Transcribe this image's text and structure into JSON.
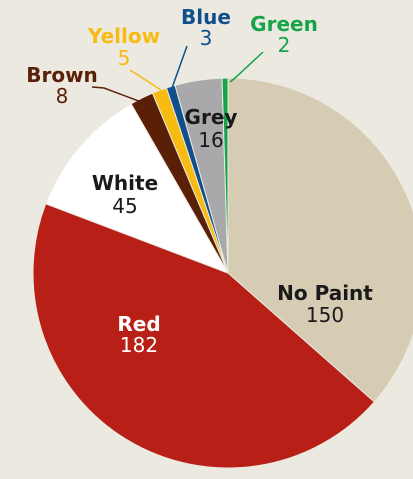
{
  "chart_data": {
    "type": "pie",
    "title": "",
    "slices": [
      {
        "label": "No Paint",
        "value": 150,
        "color": "#d6ccb4",
        "label_color": "#1a1a1a"
      },
      {
        "label": "Red",
        "value": 182,
        "color": "#b71f17",
        "label_color": "#ffffff"
      },
      {
        "label": "White",
        "value": 45,
        "color": "#ffffff",
        "label_color": "#1a1a1a"
      },
      {
        "label": "Brown",
        "value": 8,
        "color": "#5a1f07",
        "label_color": "#5a1f07"
      },
      {
        "label": "Yellow",
        "value": 5,
        "color": "#f7bb12",
        "label_color": "#f7bb12"
      },
      {
        "label": "Blue",
        "value": 3,
        "color": "#0f4f8c",
        "label_color": "#0f4f8c"
      },
      {
        "label": "Grey",
        "value": 16,
        "color": "#a9a9ab",
        "label_color": "#1a1a1a"
      },
      {
        "label": "Green",
        "value": 2,
        "color": "#16a44a",
        "label_color": "#16a44a"
      }
    ]
  }
}
